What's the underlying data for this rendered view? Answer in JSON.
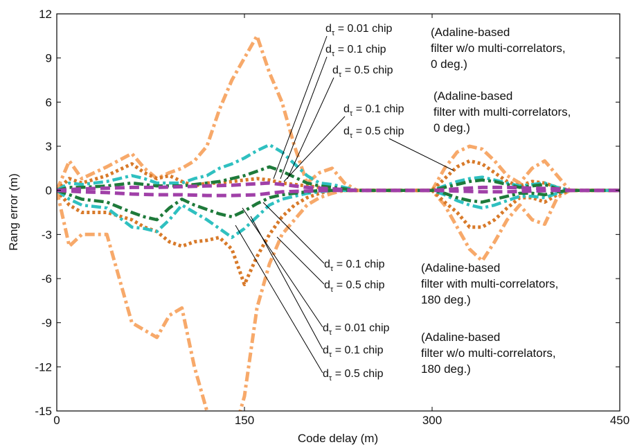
{
  "chart_data": {
    "type": "line",
    "title": "",
    "xlabel": "Code delay (m)",
    "ylabel": "Rang error (m)",
    "xlim": [
      0,
      450
    ],
    "ylim": [
      -15,
      12
    ],
    "x_ticks": [
      0,
      150,
      300,
      450
    ],
    "y_ticks": [
      12,
      9,
      6,
      3,
      0,
      -3,
      -6,
      -9,
      -12,
      -15
    ],
    "grid": false,
    "colors": {
      "light_orange": "#f7a96a",
      "dark_orange": "#d87a2a",
      "teal": "#2fc0c0",
      "green": "#1e7a3a",
      "purple": "#a040a8"
    },
    "series": [
      {
        "color": "light_orange",
        "style": "dash-dot",
        "x": [
          0,
          10,
          20,
          40,
          60,
          70,
          80,
          90,
          100,
          110,
          120,
          130,
          140,
          150,
          160,
          170,
          180,
          190,
          200,
          210,
          220,
          230,
          240,
          250,
          260,
          270,
          280,
          290,
          300,
          310,
          320,
          330,
          340,
          350,
          360,
          370,
          380,
          390,
          400,
          410,
          450
        ],
        "y": [
          0,
          2,
          0.8,
          1.6,
          2.5,
          1.5,
          0.8,
          1.2,
          1.5,
          2,
          3,
          5.5,
          7.5,
          9,
          10.5,
          8,
          6,
          3,
          0.5,
          1.2,
          1.5,
          0.5,
          0,
          0,
          0,
          0,
          0,
          0,
          0,
          1.5,
          2.6,
          3,
          2.8,
          2,
          1,
          0.5,
          1.5,
          2,
          1,
          0,
          0
        ]
      },
      {
        "color": "light_orange",
        "style": "dash-dot",
        "x": [
          0,
          10,
          20,
          40,
          60,
          70,
          80,
          90,
          100,
          110,
          120,
          130,
          140,
          150,
          160,
          170,
          180,
          190,
          200,
          210,
          220,
          230,
          240,
          250,
          260,
          270,
          280,
          290,
          300,
          310,
          320,
          330,
          340,
          350,
          360,
          370,
          380,
          390,
          400,
          410,
          450
        ],
        "y": [
          0,
          -3.8,
          -3,
          -3,
          -9,
          -9.5,
          -10,
          -8.5,
          -8,
          -12,
          -15,
          -16,
          -17,
          -14,
          -8,
          -5,
          -3,
          -2,
          -1,
          -0.5,
          -0.2,
          0,
          0,
          0,
          0,
          0,
          0,
          0,
          0,
          -1,
          -2.5,
          -4,
          -4.8,
          -3.5,
          -2,
          -1,
          -2,
          -2.3,
          -0.5,
          0,
          0
        ]
      },
      {
        "color": "dark_orange",
        "style": "dotted",
        "x": [
          0,
          10,
          20,
          40,
          60,
          70,
          80,
          90,
          100,
          110,
          120,
          130,
          140,
          150,
          160,
          170,
          180,
          190,
          200,
          210,
          220,
          230,
          240,
          250,
          260,
          270,
          280,
          290,
          300,
          310,
          320,
          330,
          340,
          350,
          360,
          370,
          380,
          390,
          400,
          410,
          450
        ],
        "y": [
          0,
          0.8,
          0.5,
          1,
          1.8,
          1.2,
          0.8,
          1,
          0.6,
          0.3,
          0.5,
          0.5,
          0.6,
          0.7,
          0.8,
          0.7,
          0.5,
          0.4,
          0.3,
          0.2,
          0.1,
          0,
          0,
          0,
          0,
          0,
          0,
          0,
          0,
          0.8,
          1.6,
          2,
          1.8,
          1.2,
          0.6,
          0.3,
          0.6,
          0.5,
          0.2,
          0,
          0
        ]
      },
      {
        "color": "dark_orange",
        "style": "dotted",
        "x": [
          0,
          10,
          20,
          40,
          60,
          70,
          80,
          90,
          100,
          110,
          120,
          130,
          140,
          150,
          160,
          170,
          180,
          190,
          200,
          210,
          220,
          230,
          240,
          250,
          260,
          270,
          280,
          290,
          300,
          310,
          320,
          330,
          340,
          350,
          360,
          370,
          380,
          390,
          400,
          410,
          450
        ],
        "y": [
          0,
          -1,
          -1.5,
          -1.5,
          -2,
          -2.5,
          -2.8,
          -3.5,
          -3.8,
          -3.5,
          -3.4,
          -3.2,
          -4,
          -6.4,
          -4.5,
          -3,
          -1.8,
          -1,
          -0.5,
          -0.2,
          0,
          0,
          0,
          0,
          0,
          0,
          0,
          0,
          0,
          -0.8,
          -1.5,
          -2.5,
          -2.5,
          -2,
          -1.2,
          -0.5,
          -0.5,
          -0.8,
          -0.3,
          0,
          0
        ]
      },
      {
        "color": "teal",
        "style": "dash-dot",
        "x": [
          0,
          10,
          20,
          40,
          60,
          70,
          80,
          90,
          100,
          110,
          120,
          130,
          140,
          150,
          160,
          170,
          180,
          190,
          200,
          210,
          220,
          230,
          240,
          250,
          260,
          270,
          280,
          290,
          300,
          310,
          320,
          330,
          340,
          350,
          360,
          370,
          380,
          390,
          400,
          410,
          450
        ],
        "y": [
          0,
          0.5,
          0.4,
          0.6,
          1,
          0.8,
          0.5,
          0.5,
          0.5,
          0.8,
          1,
          1.5,
          1.8,
          2.2,
          2.7,
          3.1,
          2.6,
          1.8,
          1,
          0.5,
          0.4,
          0.2,
          0,
          0,
          0,
          0,
          0,
          0,
          0,
          0.3,
          0.6,
          0.8,
          0.9,
          0.7,
          0.5,
          0.3,
          0.4,
          0.5,
          0.2,
          0,
          0
        ]
      },
      {
        "color": "teal",
        "style": "dash-dot",
        "x": [
          0,
          10,
          20,
          40,
          60,
          70,
          80,
          90,
          100,
          110,
          120,
          130,
          140,
          150,
          160,
          170,
          180,
          190,
          200,
          210,
          220,
          230,
          240,
          250,
          260,
          270,
          280,
          290,
          300,
          310,
          320,
          330,
          340,
          350,
          360,
          370,
          380,
          390,
          400,
          410,
          450
        ],
        "y": [
          0,
          -0.6,
          -1,
          -1.2,
          -2.5,
          -2.6,
          -2.8,
          -2,
          -1,
          -1.5,
          -2,
          -2.6,
          -3.2,
          -2.6,
          -1.8,
          -1,
          -0.6,
          -0.4,
          -0.2,
          -0.1,
          0,
          0,
          0,
          0,
          0,
          0,
          0,
          0,
          0,
          -0.3,
          -0.7,
          -1,
          -1.2,
          -1,
          -0.7,
          -0.4,
          -0.4,
          -0.5,
          -0.2,
          0,
          0
        ]
      },
      {
        "color": "green",
        "style": "dash-dot",
        "x": [
          0,
          10,
          20,
          40,
          60,
          70,
          80,
          90,
          100,
          110,
          120,
          130,
          140,
          150,
          160,
          170,
          180,
          190,
          200,
          210,
          220,
          230,
          240,
          250,
          260,
          270,
          280,
          290,
          300,
          310,
          320,
          330,
          340,
          350,
          360,
          370,
          380,
          390,
          400,
          410,
          450
        ],
        "y": [
          0,
          0.2,
          0.2,
          0.3,
          0.5,
          0.4,
          0.3,
          0.3,
          0.3,
          0.4,
          0.5,
          0.6,
          0.8,
          1,
          1.3,
          1.6,
          1.3,
          0.9,
          0.5,
          0.3,
          0.2,
          0.1,
          0,
          0,
          0,
          0,
          0,
          0,
          0,
          0.2,
          0.4,
          0.6,
          0.7,
          0.6,
          0.4,
          0.2,
          0.3,
          0.4,
          0.1,
          0,
          0
        ]
      },
      {
        "color": "green",
        "style": "dash-dot",
        "x": [
          0,
          10,
          20,
          40,
          60,
          70,
          80,
          90,
          100,
          110,
          120,
          130,
          140,
          150,
          160,
          170,
          180,
          190,
          200,
          210,
          220,
          230,
          240,
          250,
          260,
          270,
          280,
          290,
          300,
          310,
          320,
          330,
          340,
          350,
          360,
          370,
          380,
          390,
          400,
          410,
          450
        ],
        "y": [
          0,
          -0.3,
          -0.6,
          -0.8,
          -1.5,
          -1.8,
          -2,
          -1.2,
          -0.6,
          -1,
          -1.3,
          -1.6,
          -1.8,
          -1.4,
          -0.9,
          -0.5,
          -0.3,
          -0.2,
          -0.1,
          0,
          0,
          0,
          0,
          0,
          0,
          0,
          0,
          0,
          0,
          -0.2,
          -0.5,
          -0.7,
          -0.8,
          -0.6,
          -0.4,
          -0.2,
          -0.2,
          -0.3,
          -0.1,
          0,
          0
        ]
      },
      {
        "color": "purple",
        "style": "dashed",
        "x": [
          0,
          20,
          40,
          60,
          80,
          100,
          120,
          140,
          160,
          170,
          180,
          200,
          220,
          240,
          250,
          300,
          320,
          340,
          360,
          380,
          400,
          410,
          450
        ],
        "y": [
          0,
          0.1,
          0.15,
          0.2,
          0.2,
          0.25,
          0.3,
          0.35,
          0.45,
          0.5,
          0.4,
          0.2,
          0.1,
          0,
          0,
          0,
          0.1,
          0.2,
          0.2,
          0.15,
          0.1,
          0,
          0
        ]
      },
      {
        "color": "purple",
        "style": "dashed",
        "x": [
          0,
          20,
          40,
          60,
          80,
          100,
          120,
          140,
          160,
          170,
          180,
          200,
          220,
          240,
          250,
          300,
          320,
          340,
          360,
          380,
          400,
          410,
          450
        ],
        "y": [
          0,
          -0.1,
          -0.15,
          -0.25,
          -0.3,
          -0.3,
          -0.35,
          -0.35,
          -0.3,
          -0.2,
          -0.1,
          -0.05,
          0,
          0,
          0,
          0,
          -0.05,
          -0.1,
          -0.1,
          -0.05,
          0,
          0,
          0
        ]
      }
    ],
    "annotations": {
      "top": [
        {
          "d": "d",
          "sub": "τ",
          "rest": " = 0.01 chip"
        },
        {
          "d": "d",
          "sub": "τ",
          "rest": " = 0.1 chip"
        },
        {
          "d": "d",
          "sub": "τ",
          "rest": " = 0.5 chip"
        }
      ],
      "top_group": [
        "(Adaline-based",
        "filter w/o multi-correlators,",
        "0 deg.)"
      ],
      "mid_top": [
        {
          "d": "d",
          "sub": "τ",
          "rest": " = 0.1 chip"
        },
        {
          "d": "d",
          "sub": "τ",
          "rest": " = 0.5 chip"
        }
      ],
      "mid_top_group": [
        "(Adaline-based",
        "filter with multi-correlators,",
        "0 deg.)"
      ],
      "mid_bottom": [
        {
          "d": "d",
          "sub": "τ",
          "rest": " = 0.1 chip"
        },
        {
          "d": "d",
          "sub": "τ",
          "rest": " = 0.5 chip"
        }
      ],
      "mid_bottom_group": [
        "(Adaline-based",
        "filter with multi-correlators,",
        "180 deg.)"
      ],
      "bottom": [
        {
          "d": "d",
          "sub": "τ",
          "rest": " = 0.01 chip"
        },
        {
          "d": "d",
          "sub": "τ",
          "rest": " = 0.1 chip"
        },
        {
          "d": "d",
          "sub": "τ",
          "rest": " = 0.5 chip"
        }
      ],
      "bottom_group": [
        "(Adaline-based",
        "filter w/o multi-correlators,",
        "180 deg.)"
      ]
    }
  }
}
